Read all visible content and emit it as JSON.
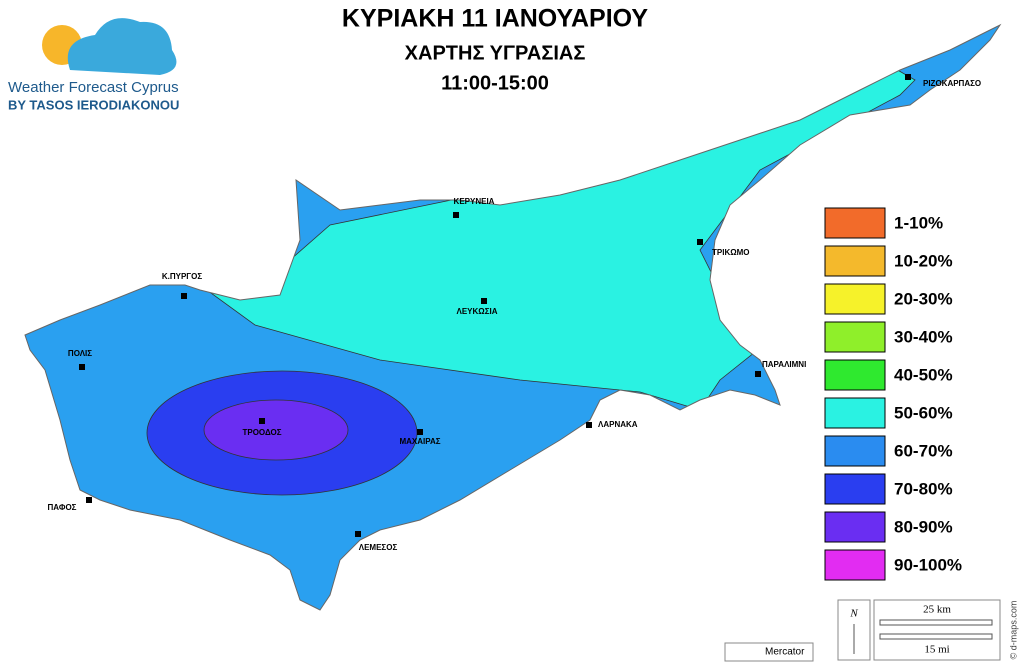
{
  "header": {
    "title": "ΚΥΡΙΑΚΗ 11 ΙΑΝΟΥΑΡΙΟΥ",
    "subtitle": "ΧΑΡΤΗΣ ΥΓΡΑΣΙΑΣ",
    "time": "11:00-15:00"
  },
  "logo": {
    "name": "Weather Forecast Cyprus",
    "byline": "BY TASOS IERODIAKONOU"
  },
  "cities": [
    {
      "label": "ΡΙΖΟΚΑΡΠΑΣΟ"
    },
    {
      "label": "ΚΕΡΥΝΕΙΑ"
    },
    {
      "label": "ΤΡΙΚΩΜΟ"
    },
    {
      "label": "Κ.ΠΥΡΓΟΣ"
    },
    {
      "label": "ΛΕΥΚΩΣΙΑ"
    },
    {
      "label": "ΠΟΛΙΣ"
    },
    {
      "label": "ΠΑΡΑΛΙΜΝΙ"
    },
    {
      "label": "ΤΡΟΟΔΟΣ"
    },
    {
      "label": "ΜΑΧΑΙΡΑΣ"
    },
    {
      "label": "ΛΑΡΝΑΚΑ"
    },
    {
      "label": "ΠΑΦΟΣ"
    },
    {
      "label": "ΛΕΜΕΣΟΣ"
    }
  ],
  "legend": [
    {
      "label": "1-10%",
      "color": "#f26b2a"
    },
    {
      "label": "10-20%",
      "color": "#f4b92c"
    },
    {
      "label": "20-30%",
      "color": "#f6f22a"
    },
    {
      "label": "30-40%",
      "color": "#8fef2a"
    },
    {
      "label": "40-50%",
      "color": "#2fe92f"
    },
    {
      "label": "50-60%",
      "color": "#2af2e2"
    },
    {
      "label": "60-70%",
      "color": "#2a8cf0"
    },
    {
      "label": "70-80%",
      "color": "#2a3ef0"
    },
    {
      "label": "80-90%",
      "color": "#6a2ef2"
    },
    {
      "label": "90-100%",
      "color": "#e22cf2"
    }
  ],
  "scale": {
    "north": "N",
    "km": "25 km",
    "mi": "15 mi"
  },
  "projection": "Mercator",
  "credit": "© d-maps.com"
}
